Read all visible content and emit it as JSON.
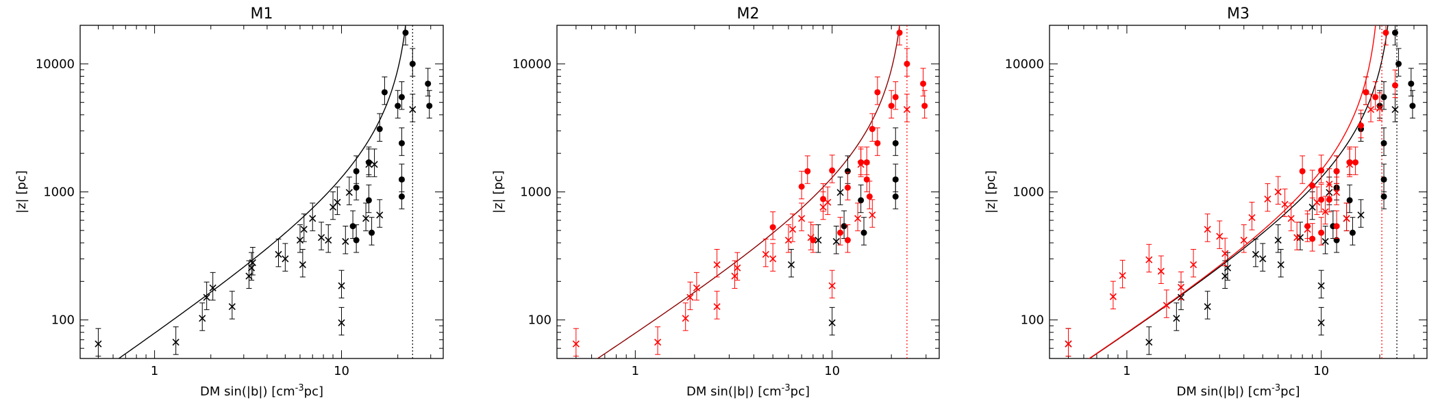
{
  "chart_data": [
    {
      "type": "scatter",
      "title": "M1",
      "xlabel": "DM sin(|b|) [cm",
      "xlabel_sup": "-3",
      "xlabel_tail": "pc]",
      "ylabel": "|z| [pc]",
      "xscale": "log",
      "yscale": "log",
      "xlim": [
        0.4,
        35
      ],
      "ylim": [
        50,
        20000
      ],
      "xticks": [
        {
          "v": 1,
          "label": "1"
        },
        {
          "v": 10,
          "label": "10"
        }
      ],
      "yticks": [
        {
          "v": 100,
          "label": "100"
        },
        {
          "v": 1000,
          "label": "1000"
        },
        {
          "v": 10000,
          "label": "10000"
        }
      ],
      "series": [
        {
          "name": "circles",
          "marker": "circle",
          "color": "#000000",
          "points": [
            [
              22,
              17500
            ],
            [
              24,
              10000
            ],
            [
              29,
              7000
            ],
            [
              29.5,
              4700
            ],
            [
              21,
              5500
            ],
            [
              20,
              4700
            ],
            [
              17,
              6000
            ],
            [
              16,
              3100
            ],
            [
              21,
              2400
            ],
            [
              21,
              1250
            ],
            [
              21,
              920
            ],
            [
              14,
              1700
            ],
            [
              12,
              1450
            ],
            [
              12,
              1080
            ],
            [
              11.5,
              540
            ],
            [
              12,
              420
            ],
            [
              14,
              860
            ],
            [
              14.5,
              480
            ]
          ]
        },
        {
          "name": "crosses",
          "marker": "cross",
          "color": "#000000",
          "points": [
            [
              0.5,
              65
            ],
            [
              1.3,
              67
            ],
            [
              1.8,
              103
            ],
            [
              1.9,
              150
            ],
            [
              2.05,
              178
            ],
            [
              2.6,
              127
            ],
            [
              3.2,
              220
            ],
            [
              3.3,
              255
            ],
            [
              3.35,
              280
            ],
            [
              4.6,
              325
            ],
            [
              5,
              300
            ],
            [
              6,
              420
            ],
            [
              6.2,
              270
            ],
            [
              6.3,
              510
            ],
            [
              7,
              620
            ],
            [
              7.8,
              440
            ],
            [
              8.5,
              420
            ],
            [
              9,
              760
            ],
            [
              9.5,
              830
            ],
            [
              10,
              185
            ],
            [
              10,
              95
            ],
            [
              10.5,
              410
            ],
            [
              11,
              990
            ],
            [
              13.5,
              620
            ],
            [
              14,
              1640
            ],
            [
              15,
              1640
            ],
            [
              16,
              660
            ],
            [
              24,
              4400
            ]
          ]
        }
      ],
      "curves": [
        {
          "name": "model",
          "color": "#000000",
          "asymptote": 24
        }
      ],
      "vlines": [
        {
          "x": 24,
          "color": "#000000",
          "style": "dotted"
        }
      ]
    },
    {
      "type": "scatter",
      "title": "M2",
      "xlabel": "DM sin(|b|) [cm",
      "xlabel_sup": "-3",
      "xlabel_tail": "pc]",
      "ylabel": "|z| [pc]",
      "xscale": "log",
      "yscale": "log",
      "xlim": [
        0.4,
        35
      ],
      "ylim": [
        50,
        20000
      ],
      "xticks": [
        {
          "v": 1,
          "label": "1"
        },
        {
          "v": 10,
          "label": "10"
        }
      ],
      "yticks": [
        {
          "v": 100,
          "label": "100"
        },
        {
          "v": 1000,
          "label": "1000"
        },
        {
          "v": 10000,
          "label": "10000"
        }
      ],
      "series": [
        {
          "name": "black circles",
          "marker": "circle",
          "color": "#000000",
          "points": [
            [
              12,
              1450
            ],
            [
              11.5,
              540
            ],
            [
              14,
              860
            ],
            [
              14.5,
              480
            ],
            [
              21,
              2400
            ],
            [
              21,
              1250
            ],
            [
              21,
              920
            ]
          ]
        },
        {
          "name": "black crosses",
          "marker": "cross",
          "color": "#000000",
          "points": [
            [
              6.2,
              270
            ],
            [
              10,
              95
            ],
            [
              8.5,
              420
            ],
            [
              10.5,
              410
            ],
            [
              11,
              990
            ]
          ]
        },
        {
          "name": "red circles",
          "marker": "circle",
          "color": "#ff0000",
          "points": [
            [
              22,
              17500
            ],
            [
              24,
              10000
            ],
            [
              29,
              7000
            ],
            [
              29.5,
              4700
            ],
            [
              21,
              5500
            ],
            [
              20,
              4700
            ],
            [
              17,
              6000
            ],
            [
              16,
              3100
            ],
            [
              17,
              2400
            ],
            [
              14,
              1700
            ],
            [
              15,
              1700
            ],
            [
              12,
              1080
            ],
            [
              10,
              1470
            ],
            [
              5,
              530
            ],
            [
              7,
              1100
            ],
            [
              7.5,
              1450
            ],
            [
              8,
              420
            ],
            [
              9,
              880
            ],
            [
              15,
              1250
            ],
            [
              15.5,
              920
            ],
            [
              11,
              480
            ],
            [
              12,
              420
            ]
          ]
        },
        {
          "name": "red crosses",
          "marker": "cross",
          "color": "#ff0000",
          "points": [
            [
              0.5,
              65
            ],
            [
              1.3,
              67
            ],
            [
              1.8,
              103
            ],
            [
              1.9,
              150
            ],
            [
              2.05,
              178
            ],
            [
              2.6,
              127
            ],
            [
              2.6,
              270
            ],
            [
              3.2,
              220
            ],
            [
              3.3,
              255
            ],
            [
              4.6,
              325
            ],
            [
              5,
              300
            ],
            [
              6,
              420
            ],
            [
              6.3,
              510
            ],
            [
              7,
              620
            ],
            [
              7.8,
              440
            ],
            [
              9,
              760
            ],
            [
              9.5,
              830
            ],
            [
              10,
              185
            ],
            [
              13.5,
              620
            ],
            [
              14,
              1640
            ],
            [
              16,
              660
            ],
            [
              24,
              4400
            ]
          ]
        }
      ],
      "curves": [
        {
          "name": "model",
          "color": "#8b0000",
          "asymptote": 24
        }
      ],
      "vlines": [
        {
          "x": 24,
          "color": "#ff0000",
          "style": "dotted"
        }
      ]
    },
    {
      "type": "scatter",
      "title": "M3",
      "xlabel": "DM sin(|b|) [cm",
      "xlabel_sup": "-3",
      "xlabel_tail": "pc]",
      "ylabel": "|z| [pc]",
      "xscale": "log",
      "yscale": "log",
      "xlim": [
        0.4,
        35
      ],
      "ylim": [
        50,
        20000
      ],
      "xticks": [
        {
          "v": 1,
          "label": "1"
        },
        {
          "v": 10,
          "label": "10"
        }
      ],
      "yticks": [
        {
          "v": 100,
          "label": "100"
        },
        {
          "v": 1000,
          "label": "1000"
        },
        {
          "v": 10000,
          "label": "10000"
        }
      ],
      "series": [
        {
          "name": "black circles",
          "marker": "circle",
          "color": "#000000",
          "points": [
            [
              24,
              17500
            ],
            [
              25,
              10000
            ],
            [
              29,
              7000
            ],
            [
              29.5,
              4700
            ],
            [
              21,
              5500
            ],
            [
              20,
              4700
            ],
            [
              17,
              6000
            ],
            [
              16,
              3100
            ],
            [
              21,
              2400
            ],
            [
              21,
              1250
            ],
            [
              21,
              920
            ],
            [
              14,
              1700
            ],
            [
              12,
              1450
            ],
            [
              12,
              1080
            ],
            [
              11.5,
              540
            ],
            [
              12,
              420
            ],
            [
              14,
              860
            ],
            [
              14.5,
              480
            ]
          ]
        },
        {
          "name": "black crosses",
          "marker": "cross",
          "color": "#000000",
          "points": [
            [
              0.5,
              65
            ],
            [
              1.3,
              67
            ],
            [
              1.8,
              103
            ],
            [
              1.9,
              150
            ],
            [
              2.6,
              127
            ],
            [
              3.2,
              220
            ],
            [
              3.3,
              255
            ],
            [
              4.6,
              325
            ],
            [
              5,
              300
            ],
            [
              6,
              420
            ],
            [
              6.2,
              270
            ],
            [
              7.8,
              440
            ],
            [
              9,
              760
            ],
            [
              10,
              185
            ],
            [
              10,
              95
            ],
            [
              10.5,
              410
            ],
            [
              11,
              990
            ],
            [
              13.5,
              620
            ],
            [
              16,
              660
            ],
            [
              24,
              4400
            ]
          ]
        },
        {
          "name": "red circles",
          "marker": "circle",
          "color": "#ff0000",
          "points": [
            [
              21.5,
              17500
            ],
            [
              24,
              6800
            ],
            [
              19,
              5500
            ],
            [
              17,
              6000
            ],
            [
              16,
              3300
            ],
            [
              14,
              1700
            ],
            [
              12,
              1450
            ],
            [
              10,
              1470
            ],
            [
              8,
              1450
            ],
            [
              9,
              1120
            ],
            [
              10,
              870
            ],
            [
              11,
              870
            ],
            [
              8.5,
              540
            ],
            [
              9,
              430
            ],
            [
              10,
              480
            ],
            [
              12,
              540
            ],
            [
              15,
              1700
            ]
          ]
        },
        {
          "name": "red crosses",
          "marker": "cross",
          "color": "#ff0000",
          "points": [
            [
              0.5,
              65
            ],
            [
              0.85,
              152
            ],
            [
              0.95,
              222
            ],
            [
              1.3,
              295
            ],
            [
              1.5,
              240
            ],
            [
              1.6,
              130
            ],
            [
              1.9,
              180
            ],
            [
              2.2,
              270
            ],
            [
              2.6,
              510
            ],
            [
              3,
              450
            ],
            [
              3.2,
              330
            ],
            [
              4,
              420
            ],
            [
              4.4,
              630
            ],
            [
              5.3,
              880
            ],
            [
              6,
              1000
            ],
            [
              6.5,
              800
            ],
            [
              7,
              620
            ],
            [
              7.5,
              440
            ],
            [
              8.5,
              510
            ],
            [
              9.5,
              830
            ],
            [
              10.5,
              700
            ],
            [
              11,
              1150
            ],
            [
              12,
              990
            ],
            [
              13.5,
              620
            ],
            [
              14,
              1640
            ],
            [
              18,
              4400
            ],
            [
              20,
              4500
            ]
          ]
        }
      ],
      "curves": [
        {
          "name": "model black",
          "color": "#000000",
          "asymptote": 24
        },
        {
          "name": "model red",
          "color": "#ff0000",
          "asymptote": 20.5
        }
      ],
      "vlines": [
        {
          "x": 24.5,
          "color": "#000000",
          "style": "dotted"
        },
        {
          "x": 20.5,
          "color": "#ff0000",
          "style": "dotted"
        }
      ]
    }
  ]
}
